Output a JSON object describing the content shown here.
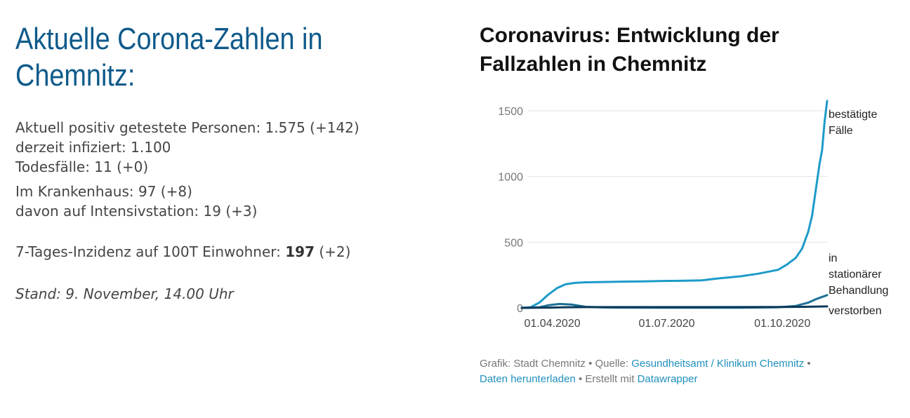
{
  "left": {
    "heading_line1": "Aktuelle Corona-Zahlen in",
    "heading_line2": "Chemnitz:",
    "positive_label": "Aktuell positiv getestete Personen: 1.575 (+142)",
    "infected_label": "derzeit infiziert: 1.100",
    "deaths_label": "Todesfälle: 11 (+0)",
    "hospital_label": "Im Krankenhaus: 97 (+8)",
    "icu_label": "davon auf Intensivstation: 19 (+3)",
    "incidence_prefix": "7-Tages-Inzidenz auf 100T Einwohner:",
    "incidence_value": "197",
    "incidence_delta": "(+2)",
    "stand": "Stand: 9. November, 14.00 Uhr"
  },
  "chart_title_line1": "Coronavirus: Entwicklung der",
  "chart_title_line2": "Fallzahlen in Chemnitz",
  "footer": {
    "grafik": "Grafik: Stadt Chemnitz",
    "bullet": "•",
    "quelle_prefix": "Quelle:",
    "quelle_link": "Gesundheitsamt / Klinikum Chemnitz",
    "download_link": "Daten herunterladen",
    "erstellt": "Erstellt mit",
    "datawrapper_link": "Datawrapper"
  },
  "colors": {
    "confirmed": "#1d9bc9",
    "hospital": "#1c6f95",
    "deaths": "#0c3a5a",
    "grid": "#e2e2e2",
    "axis_text": "#777777"
  },
  "chart_data": {
    "type": "line",
    "title": "Coronavirus: Entwicklung der Fallzahlen in Chemnitz",
    "x_ticks": [
      "2020-04-01",
      "2020-07-01",
      "2020-10-01"
    ],
    "x_tick_labels": [
      "01.04.2020",
      "01.07.2020",
      "01.10.2020"
    ],
    "y_ticks": [
      0,
      500,
      1000,
      1500
    ],
    "y_tick_labels": [
      "0",
      "500",
      "1000",
      "1500"
    ],
    "ylim": [
      0,
      1500
    ],
    "grid": true,
    "legend": "direct labels at right end of lines",
    "series": [
      {
        "name": "bestätigte Fälle",
        "label_lines": [
          "bestätigte",
          "Fälle"
        ],
        "color": "#1d9bc9",
        "points": [
          [
            "2020-03-11",
            0
          ],
          [
            "2020-03-18",
            5
          ],
          [
            "2020-03-25",
            40
          ],
          [
            "2020-04-01",
            100
          ],
          [
            "2020-04-08",
            150
          ],
          [
            "2020-04-15",
            180
          ],
          [
            "2020-04-22",
            190
          ],
          [
            "2020-05-01",
            195
          ],
          [
            "2020-05-15",
            197
          ],
          [
            "2020-06-01",
            200
          ],
          [
            "2020-06-15",
            202
          ],
          [
            "2020-07-01",
            205
          ],
          [
            "2020-07-15",
            206
          ],
          [
            "2020-08-01",
            210
          ],
          [
            "2020-08-15",
            225
          ],
          [
            "2020-09-01",
            240
          ],
          [
            "2020-09-15",
            260
          ],
          [
            "2020-10-01",
            290
          ],
          [
            "2020-10-08",
            330
          ],
          [
            "2020-10-15",
            380
          ],
          [
            "2020-10-20",
            450
          ],
          [
            "2020-10-25",
            580
          ],
          [
            "2020-10-28",
            700
          ],
          [
            "2020-10-31",
            900
          ],
          [
            "2020-11-03",
            1100
          ],
          [
            "2020-11-05",
            1200
          ],
          [
            "2020-11-07",
            1420
          ],
          [
            "2020-11-09",
            1575
          ]
        ]
      },
      {
        "name": "in stationärer Behandlung",
        "label_lines": [
          "in",
          "stationärer",
          "Behandlung"
        ],
        "color": "#1c6f95",
        "points": [
          [
            "2020-03-11",
            0
          ],
          [
            "2020-03-25",
            5
          ],
          [
            "2020-04-01",
            20
          ],
          [
            "2020-04-10",
            30
          ],
          [
            "2020-04-20",
            25
          ],
          [
            "2020-05-01",
            8
          ],
          [
            "2020-05-15",
            3
          ],
          [
            "2020-06-01",
            2
          ],
          [
            "2020-07-01",
            1
          ],
          [
            "2020-08-01",
            1
          ],
          [
            "2020-09-01",
            1
          ],
          [
            "2020-10-01",
            5
          ],
          [
            "2020-10-15",
            15
          ],
          [
            "2020-10-25",
            40
          ],
          [
            "2020-11-01",
            70
          ],
          [
            "2020-11-09",
            97
          ]
        ]
      },
      {
        "name": "verstorben",
        "label_lines": [
          "verstorben"
        ],
        "color": "#0c3a5a",
        "points": [
          [
            "2020-03-11",
            0
          ],
          [
            "2020-04-01",
            2
          ],
          [
            "2020-04-15",
            5
          ],
          [
            "2020-05-01",
            6
          ],
          [
            "2020-06-01",
            6
          ],
          [
            "2020-08-01",
            6
          ],
          [
            "2020-10-01",
            7
          ],
          [
            "2020-10-20",
            8
          ],
          [
            "2020-11-01",
            10
          ],
          [
            "2020-11-09",
            11
          ]
        ]
      }
    ]
  }
}
